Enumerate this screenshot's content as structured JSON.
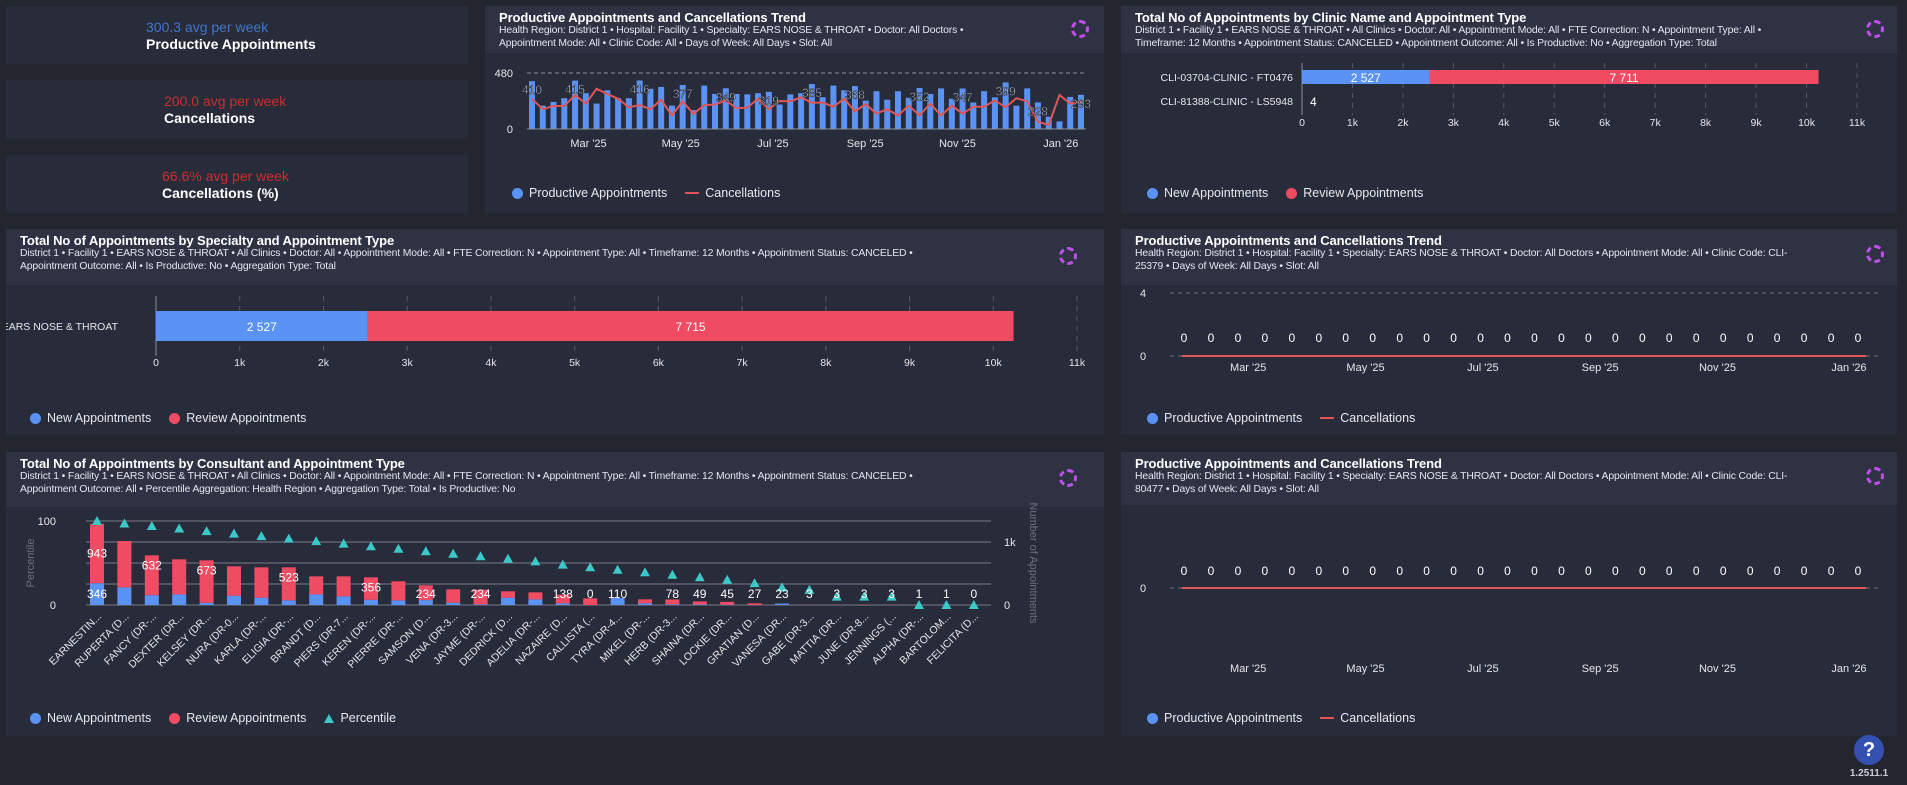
{
  "colors": {
    "new": "#5b93f5",
    "review": "#ef4b63",
    "line": "#e05555",
    "percentile": "#3cc8c8",
    "productive": "#5b93f5"
  },
  "kpis": [
    {
      "value": "300.3 avg per week",
      "label": "Productive Appointments",
      "color": "#3f78c8"
    },
    {
      "value": "200.0 avg per week",
      "label": "Cancellations",
      "color": "#c8302f"
    },
    {
      "value": "66.6% avg per week",
      "label": "Cancellations (%)",
      "color": "#c8302f"
    }
  ],
  "trend_main": {
    "title": "Productive Appointments and Cancellations Trend",
    "filters": [
      "Health Region: District 1  •  Hospital: Facility 1  •  Specialty: EARS NOSE & THROAT  •  Doctor: All Doctors  •",
      "Appointment Mode: All  •  Clinic Code: All  •  Days of Week: All Days  •  Slot: All"
    ],
    "legend": {
      "productive": "Productive Appointments",
      "cancellations": "Cancellations"
    },
    "chart_data": {
      "type": "bar+line",
      "ylim": [
        0,
        480
      ],
      "yticks": [
        "0",
        "480"
      ],
      "months": [
        "Mar '25",
        "May '25",
        "Jul '25",
        "Sep '25",
        "Nov '25",
        "Jan '26"
      ],
      "productive": [
        410,
        200,
        232,
        264,
        415,
        307,
        218,
        332,
        264,
        264,
        416,
        345,
        361,
        200,
        377,
        162,
        372,
        300,
        349,
        300,
        297,
        307,
        319,
        210,
        297,
        307,
        385,
        272,
        372,
        332,
        368,
        243,
        324,
        251,
        324,
        267,
        352,
        300,
        348,
        259,
        347,
        227,
        324,
        272,
        399,
        200,
        348,
        228,
        105,
        65,
        275,
        293
      ],
      "cancellations": [
        259,
        170,
        197,
        197,
        291,
        218,
        345,
        300,
        259,
        186,
        205,
        170,
        251,
        116,
        237,
        129,
        205,
        210,
        245,
        178,
        183,
        259,
        170,
        240,
        237,
        272,
        224,
        227,
        191,
        259,
        151,
        213,
        132,
        170,
        116,
        200,
        116,
        218,
        116,
        200,
        132,
        191,
        191,
        245,
        186,
        264,
        237,
        62,
        35,
        291,
        218,
        232
      ],
      "labels": [
        {
          "week": 0,
          "text": "410"
        },
        {
          "week": 4,
          "text": "415"
        },
        {
          "week": 10,
          "text": "416"
        },
        {
          "week": 14,
          "text": "377"
        },
        {
          "week": 18,
          "text": "349"
        },
        {
          "week": 22,
          "text": "319"
        },
        {
          "week": 26,
          "text": "385"
        },
        {
          "week": 30,
          "text": "368"
        },
        {
          "week": 36,
          "text": "352"
        },
        {
          "week": 40,
          "text": "347"
        },
        {
          "week": 44,
          "text": "399"
        },
        {
          "week": 47,
          "text": "228"
        },
        {
          "week": 51,
          "text": "293"
        }
      ]
    }
  },
  "clinic": {
    "title": "Total No of Appointments by Clinic Name and Appointment Type",
    "filters": [
      "District 1  •  Facility 1  •  EARS NOSE & THROAT  •  All Clinics  •  Doctor: All  •  Appointment Mode: All  •  FTE Correction: N  •  Appointment Type: All  •",
      "Timeframe: 12 Months  •  Appointment Status: CANCELED  •  Appointment Outcome: All  •  Is Productive: No  •  Aggregation Type: Total"
    ],
    "legend": {
      "new": "New Appointments",
      "review": "Review Appointments"
    },
    "chart_data": {
      "type": "bar",
      "orientation": "horizontal",
      "stacked": true,
      "xlim": [
        0,
        11000
      ],
      "xticks": [
        "0",
        "1k",
        "2k",
        "3k",
        "4k",
        "5k",
        "6k",
        "7k",
        "8k",
        "9k",
        "10k",
        "11k"
      ],
      "rows": [
        {
          "category": "CLI-03704-CLINIC - FT0476",
          "new": 2527,
          "review": 7711,
          "new_label": "2 527",
          "review_label": "7 711"
        },
        {
          "category": "CLI-81388-CLINIC - LS5948",
          "new": 4,
          "review": 0,
          "new_label": "4",
          "review_label": ""
        }
      ]
    }
  },
  "specialty": {
    "title": "Total No of Appointments by Specialty and Appointment Type",
    "filters": [
      "District 1  •  Facility 1  •  EARS NOSE & THROAT  •  All Clinics  •  Doctor: All  •  Appointment Mode: All  •  FTE Correction: N  •  Appointment Type: All  •  Timeframe: 12 Months  •  Appointment Status: CANCELED  •",
      "Appointment Outcome: All  •  Is Productive: No  •  Aggregation Type: Total"
    ],
    "legend": {
      "new": "New Appointments",
      "review": "Review Appointments"
    },
    "chart_data": {
      "type": "bar",
      "orientation": "horizontal",
      "stacked": true,
      "xlim": [
        0,
        11000
      ],
      "xticks": [
        "0",
        "1k",
        "2k",
        "3k",
        "4k",
        "5k",
        "6k",
        "7k",
        "8k",
        "9k",
        "10k",
        "11k"
      ],
      "rows": [
        {
          "category": "EARS NOSE & THROAT",
          "new": 2527,
          "review": 7715,
          "new_label": "2 527",
          "review_label": "7 715"
        }
      ]
    }
  },
  "trend_clinic1": {
    "title": "Productive Appointments and Cancellations Trend",
    "filters": [
      "Health Region: District 1  •  Hospital: Facility 1  •  Specialty: EARS NOSE & THROAT  •  Doctor: All Doctors  •  Appointment Mode: All  •  Clinic Code: CLI-",
      "25379  •  Days of Week: All Days  •  Slot: All"
    ],
    "legend": {
      "productive": "Productive Appointments",
      "cancellations": "Cancellations"
    },
    "chart_data": {
      "type": "bar+line",
      "ylim": [
        0,
        4
      ],
      "yticks": [
        "0",
        "4"
      ],
      "months": [
        "Mar '25",
        "May '25",
        "Jul '25",
        "Sep '25",
        "Nov '25",
        "Jan '26"
      ],
      "values": [
        0,
        0,
        0,
        0,
        0,
        0,
        0,
        0,
        0,
        0,
        0,
        0,
        0,
        0,
        0,
        0,
        0,
        0,
        0,
        0,
        0,
        0,
        0,
        0,
        0,
        0
      ]
    }
  },
  "trend_clinic2": {
    "title": "Productive Appointments and Cancellations Trend",
    "filters": [
      "Health Region: District 1  •  Hospital: Facility 1  •  Specialty: EARS NOSE & THROAT  •  Doctor: All Doctors  •  Appointment Mode: All  •  Clinic Code: CLI-",
      "80477  •  Days of Week: All Days  •  Slot: All"
    ],
    "legend": {
      "productive": "Productive Appointments",
      "cancellations": "Cancellations"
    },
    "chart_data": {
      "type": "bar+line",
      "yticks": [
        "0"
      ],
      "months": [
        "Mar '25",
        "May '25",
        "Jul '25",
        "Sep '25",
        "Nov '25",
        "Jan '26"
      ],
      "values": [
        0,
        0,
        0,
        0,
        0,
        0,
        0,
        0,
        0,
        0,
        0,
        0,
        0,
        0,
        0,
        0,
        0,
        0,
        0,
        0,
        0,
        0,
        0,
        0,
        0,
        0
      ]
    }
  },
  "consultant": {
    "title": "Total No of Appointments by Consultant and Appointment Type",
    "filters": [
      "District 1  •  Facility 1  •  EARS NOSE & THROAT  •  All Clinics  •  Doctor: All  •  Appointment Mode: All  •  FTE Correction: N  •  Appointment Type: All  •  Timeframe: 12 Months  •  Appointment Status: CANCELED  •",
      "Appointment Outcome: All  •  Percentile Aggregation: Health Region  •  Aggregation Type: Total  •  Is Productive: No"
    ],
    "legend": {
      "new": "New Appointments",
      "review": "Review Appointments",
      "percentile": "Percentile"
    },
    "chart_data": {
      "type": "bar+scatter",
      "stacked": true,
      "ylabel_left": "Percentile",
      "ylabel_right": "Number of Appointments",
      "ylim_left": [
        0,
        100
      ],
      "yticks_left": [
        "0",
        "100"
      ],
      "ylim_right": [
        0,
        1333
      ],
      "yticks_right": [
        "0",
        "1k"
      ],
      "items": [
        {
          "name": "EARNESTIN...",
          "new": 346,
          "review": 943,
          "percentile": 100,
          "labels": [
            "943",
            "346"
          ]
        },
        {
          "name": "RUPERTA (D...",
          "new": 280,
          "review": 736,
          "percentile": 97,
          "labels": []
        },
        {
          "name": "FANCY (DR-...",
          "new": 156,
          "review": 632,
          "percentile": 94,
          "labels": [
            "632"
          ]
        },
        {
          "name": "DEXTER (DR...",
          "new": 169,
          "review": 556,
          "percentile": 91,
          "labels": []
        },
        {
          "name": "KELSEY (DR...",
          "new": 36,
          "review": 673,
          "percentile": 88,
          "labels": [
            "673"
          ]
        },
        {
          "name": "NURA (DR-0...",
          "new": 148,
          "review": 466,
          "percentile": 85,
          "labels": []
        },
        {
          "name": "KARLA (DR-...",
          "new": 116,
          "review": 482,
          "percentile": 82,
          "labels": []
        },
        {
          "name": "ELIGIA (DR-...",
          "new": 75,
          "review": 523,
          "percentile": 79,
          "labels": [
            "523"
          ]
        },
        {
          "name": "BRANDT (D...",
          "new": 169,
          "review": 286,
          "percentile": 76,
          "labels": []
        },
        {
          "name": "PIERS (DR-7...",
          "new": 137,
          "review": 318,
          "percentile": 73,
          "labels": []
        },
        {
          "name": "KEREN (DR-...",
          "new": 83,
          "review": 356,
          "percentile": 70,
          "labels": [
            "356"
          ]
        },
        {
          "name": "PIERRE (DR-...",
          "new": 74,
          "review": 302,
          "percentile": 67,
          "labels": []
        },
        {
          "name": "SAMSON (D...",
          "new": 78,
          "review": 234,
          "percentile": 64,
          "labels": [
            "234"
          ]
        },
        {
          "name": "VENA (DR-3...",
          "new": 37,
          "review": 212,
          "percentile": 61,
          "labels": []
        },
        {
          "name": "JAYME (DR-...",
          "new": 10,
          "review": 234,
          "percentile": 58,
          "labels": [
            "234"
          ]
        },
        {
          "name": "DEDRICK (D...",
          "new": 116,
          "review": 101,
          "percentile": 55,
          "labels": []
        },
        {
          "name": "ADELIA (DR-...",
          "new": 90,
          "review": 111,
          "percentile": 52,
          "labels": []
        },
        {
          "name": "NAZAIRE (D...",
          "new": 26,
          "review": 138,
          "percentile": 48,
          "labels": [
            "138"
          ]
        },
        {
          "name": "CALLISTA (...",
          "new": 0,
          "review": 106,
          "percentile": 45,
          "labels": [
            "0"
          ]
        },
        {
          "name": "TYRA (DR-4...",
          "new": 110,
          "review": 0,
          "percentile": 42,
          "labels": [
            "110"
          ]
        },
        {
          "name": "MIKEL (DR-...",
          "new": 26,
          "review": 64,
          "percentile": 39,
          "labels": []
        },
        {
          "name": "HERB (DR-3...",
          "new": 10,
          "review": 78,
          "percentile": 36,
          "labels": [
            "78"
          ]
        },
        {
          "name": "SHAINA (DR...",
          "new": 8,
          "review": 49,
          "percentile": 33,
          "labels": [
            "49"
          ]
        },
        {
          "name": "LOCKIE (DR...",
          "new": 5,
          "review": 45,
          "percentile": 30,
          "labels": [
            "45"
          ]
        },
        {
          "name": "GRATIAN (D...",
          "new": 0,
          "review": 27,
          "percentile": 26,
          "labels": [
            "27"
          ]
        },
        {
          "name": "VANESA (DR...",
          "new": 23,
          "review": 0,
          "percentile": 21,
          "labels": [
            "23"
          ]
        },
        {
          "name": "GABE (DR-3...",
          "new": 0,
          "review": 3,
          "percentile": 18,
          "labels": [
            "3"
          ]
        },
        {
          "name": "MATTIA (DR...",
          "new": 0,
          "review": 3,
          "percentile": 10,
          "labels": [
            "3"
          ]
        },
        {
          "name": "JUNE (DR-8...",
          "new": 0,
          "review": 3,
          "percentile": 10,
          "labels": [
            "3"
          ]
        },
        {
          "name": "JENNINGS (...",
          "new": 0,
          "review": 3,
          "percentile": 10,
          "labels": [
            "3"
          ]
        },
        {
          "name": "ALPHA (DR-...",
          "new": 0,
          "review": 1,
          "percentile": 0,
          "labels": [
            "1"
          ]
        },
        {
          "name": "BARTOLOM...",
          "new": 0,
          "review": 1,
          "percentile": 0,
          "labels": [
            "1"
          ]
        },
        {
          "name": "FELICITA (D...",
          "new": 0,
          "review": 0,
          "percentile": 0,
          "labels": [
            "0"
          ]
        }
      ]
    }
  },
  "footer": {
    "help": "?",
    "version": "1.2511.1"
  }
}
